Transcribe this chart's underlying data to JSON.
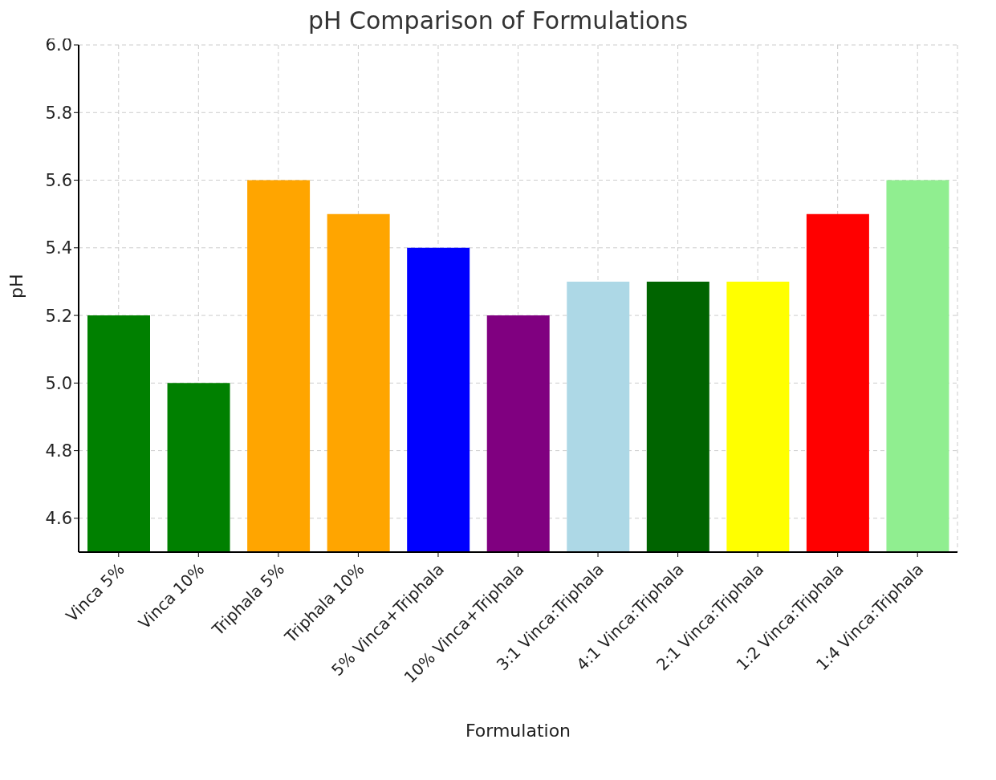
{
  "chart_data": {
    "type": "bar",
    "title": "pH Comparison of Formulations",
    "xlabel": "Formulation",
    "ylabel": "pH",
    "categories": [
      "Vinca 5%",
      "Vinca 10%",
      "Triphala 5%",
      "Triphala 10%",
      "5% Vinca+Triphala",
      "10% Vinca+Triphala",
      "3:1 Vinca:Triphala",
      "4:1 Vinca:Triphala",
      "2:1 Vinca:Triphala",
      "1:2 Vinca:Triphala",
      "1:4 Vinca:Triphala"
    ],
    "values": [
      5.2,
      5.0,
      5.6,
      5.5,
      5.4,
      5.2,
      5.3,
      5.3,
      5.3,
      5.5,
      5.6
    ],
    "colors": [
      "#008000",
      "#008000",
      "#ffa500",
      "#ffa500",
      "#0000ff",
      "#800080",
      "#add8e6",
      "#006400",
      "#ffff00",
      "#ff0000",
      "#90ee90"
    ],
    "ylim": [
      4.5,
      6.0
    ],
    "yticks": [
      4.6,
      4.8,
      {
        "value": 5,
        "label": "5.0"
      },
      5.2,
      5.4,
      5.6,
      5.8,
      {
        "value": 6,
        "label": "6.0"
      }
    ],
    "grid": true
  }
}
